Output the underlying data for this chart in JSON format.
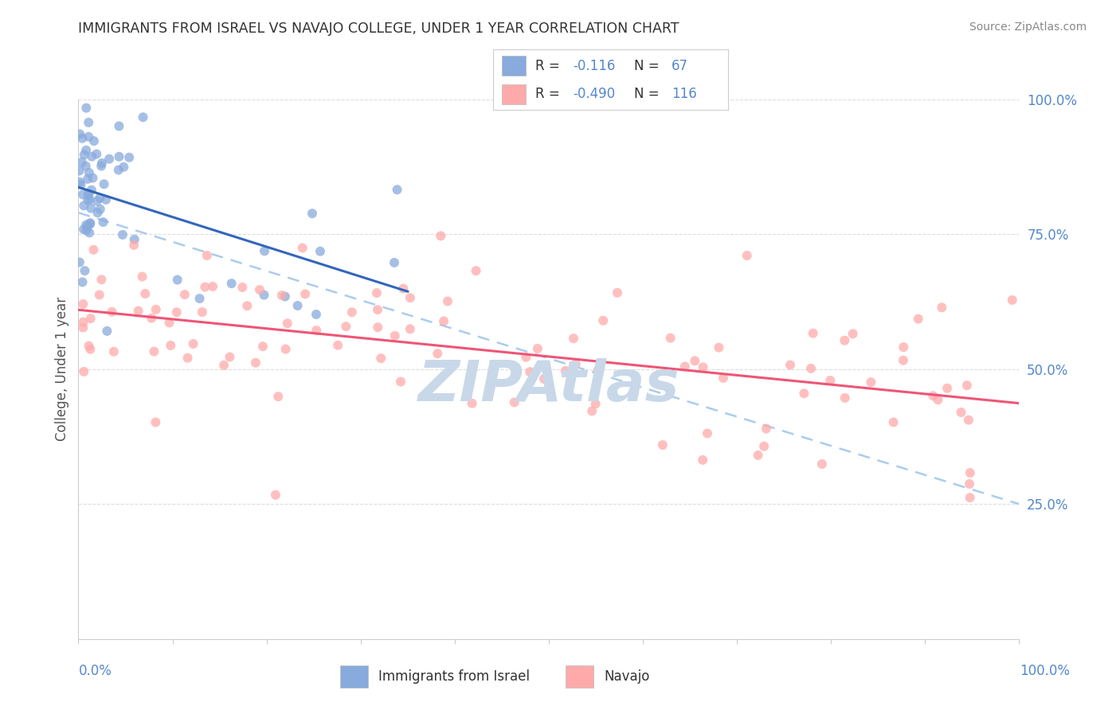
{
  "title": "IMMIGRANTS FROM ISRAEL VS NAVAJO COLLEGE, UNDER 1 YEAR CORRELATION CHART",
  "source": "Source: ZipAtlas.com",
  "ylabel": "College, Under 1 year",
  "legend_label1": "Immigrants from Israel",
  "legend_label2": "Navajo",
  "R1": -0.116,
  "N1": 67,
  "R2": -0.49,
  "N2": 116,
  "color_blue": "#88AADD",
  "color_pink": "#FFAAAA",
  "trendline_blue": "#3366BB",
  "trendline_pink": "#EE5577",
  "trendline_dashed_color": "#AACCEE",
  "watermark": "ZIPAtlas",
  "watermark_color": "#C8D8E8",
  "grid_color": "#DDDDDD",
  "axis_color": "#CCCCCC",
  "label_color": "#5588CC",
  "title_color": "#333333",
  "source_color": "#888888",
  "ylabel_color": "#555555"
}
